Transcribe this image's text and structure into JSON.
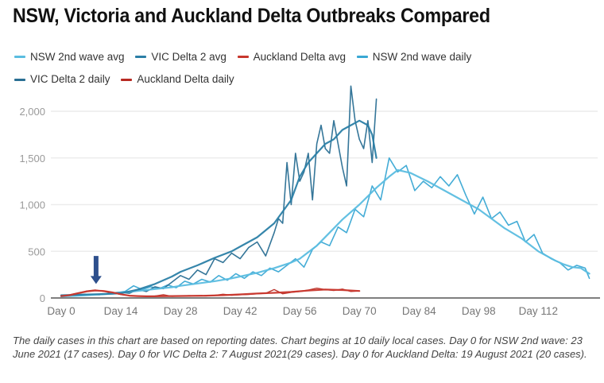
{
  "chart_data": {
    "type": "line",
    "title": "NSW, Victoria and Auckland Delta Outbreaks Compared",
    "xlabel": "",
    "ylabel": "",
    "xlim": [
      0,
      126
    ],
    "ylim": [
      0,
      2200
    ],
    "grid": true,
    "legend_position": "top",
    "x_ticks": [
      {
        "value": 0,
        "label": "Day 0"
      },
      {
        "value": 14,
        "label": "Day 14"
      },
      {
        "value": 28,
        "label": "Day 28"
      },
      {
        "value": 42,
        "label": "Day 42"
      },
      {
        "value": 56,
        "label": "Day 56"
      },
      {
        "value": 70,
        "label": "Day 70"
      },
      {
        "value": 84,
        "label": "Day 84"
      },
      {
        "value": 98,
        "label": "Day 98"
      },
      {
        "value": 112,
        "label": "Day 112"
      }
    ],
    "y_ticks": [
      {
        "value": 0,
        "label": "0"
      },
      {
        "value": 500,
        "label": "500"
      },
      {
        "value": 1000,
        "label": "1,000"
      },
      {
        "value": 1500,
        "label": "1,500"
      },
      {
        "value": 2000,
        "label": "2,000"
      }
    ],
    "series": [
      {
        "name": "NSW 2nd wave avg",
        "color": "#5bbde0",
        "width": 2.2,
        "x": [
          0,
          4,
          8,
          12,
          14,
          18,
          22,
          26,
          28,
          32,
          36,
          40,
          42,
          46,
          50,
          54,
          56,
          60,
          63,
          66,
          70,
          74,
          77,
          79,
          82,
          86,
          90,
          94,
          98,
          101,
          104,
          108,
          112,
          116,
          118,
          120,
          122,
          124
        ],
        "y": [
          17,
          25,
          35,
          45,
          55,
          75,
          95,
          115,
          130,
          155,
          180,
          210,
          230,
          270,
          320,
          380,
          420,
          560,
          700,
          840,
          1000,
          1180,
          1300,
          1370,
          1340,
          1250,
          1150,
          1050,
          950,
          850,
          750,
          640,
          500,
          400,
          360,
          330,
          320,
          260
        ]
      },
      {
        "name": "VIC Delta 2 avg",
        "color": "#2b7fa6",
        "width": 2.2,
        "x": [
          0,
          4,
          8,
          12,
          14,
          18,
          22,
          26,
          28,
          32,
          36,
          40,
          42,
          46,
          50,
          54,
          56,
          58,
          60,
          62,
          64,
          66,
          68,
          70,
          72,
          73,
          74
        ],
        "y": [
          29,
          35,
          40,
          45,
          50,
          90,
          150,
          230,
          280,
          350,
          430,
          500,
          550,
          650,
          800,
          1050,
          1300,
          1450,
          1550,
          1650,
          1700,
          1800,
          1850,
          1900,
          1850,
          1750,
          1500
        ]
      },
      {
        "name": "Auckland Delta avg",
        "color": "#c8372d",
        "width": 2.2,
        "x": [
          0,
          2,
          4,
          6,
          8,
          10,
          12,
          14,
          16,
          18,
          20,
          22,
          26,
          30,
          34,
          38,
          42,
          46,
          50,
          54,
          58,
          62,
          66,
          70
        ],
        "y": [
          20,
          30,
          50,
          70,
          80,
          75,
          60,
          40,
          25,
          20,
          18,
          18,
          20,
          22,
          25,
          30,
          38,
          48,
          55,
          65,
          80,
          90,
          85,
          75
        ]
      },
      {
        "name": "NSW 2nd wave daily",
        "color": "#3aa8d4",
        "width": 1.6,
        "x": [
          0,
          3,
          6,
          9,
          12,
          15,
          17,
          19,
          21,
          23,
          25,
          27,
          29,
          31,
          33,
          35,
          37,
          39,
          41,
          43,
          45,
          47,
          49,
          51,
          53,
          55,
          57,
          59,
          61,
          63,
          65,
          67,
          69,
          71,
          73,
          75,
          77,
          79,
          81,
          83,
          85,
          87,
          89,
          91,
          93,
          95,
          97,
          99,
          101,
          103,
          105,
          107,
          109,
          111,
          113,
          115,
          117,
          119,
          121,
          123,
          124
        ],
        "y": [
          17,
          22,
          30,
          40,
          50,
          70,
          130,
          90,
          120,
          100,
          140,
          110,
          180,
          150,
          200,
          170,
          240,
          190,
          260,
          210,
          280,
          240,
          320,
          280,
          350,
          420,
          330,
          520,
          600,
          560,
          760,
          700,
          950,
          870,
          1200,
          1050,
          1500,
          1350,
          1420,
          1150,
          1250,
          1180,
          1300,
          1200,
          1320,
          1100,
          900,
          1080,
          850,
          920,
          780,
          820,
          600,
          680,
          480,
          420,
          380,
          300,
          350,
          320,
          210
        ]
      },
      {
        "name": "VIC Delta 2 daily",
        "color": "#2a6f93",
        "width": 1.6,
        "x": [
          0,
          3,
          6,
          9,
          12,
          14,
          16,
          18,
          20,
          22,
          24,
          26,
          28,
          30,
          32,
          34,
          36,
          38,
          40,
          42,
          44,
          46,
          48,
          50,
          51,
          52,
          53,
          54,
          55,
          56,
          57,
          58,
          59,
          60,
          61,
          62,
          63,
          64,
          65,
          66,
          67,
          68,
          69,
          70,
          71,
          72,
          73,
          74
        ],
        "y": [
          29,
          30,
          40,
          35,
          55,
          60,
          50,
          90,
          70,
          120,
          100,
          170,
          240,
          200,
          300,
          250,
          420,
          380,
          480,
          420,
          540,
          600,
          450,
          700,
          850,
          800,
          1450,
          1000,
          1550,
          1250,
          1350,
          1550,
          1050,
          1650,
          1850,
          1600,
          1550,
          1900,
          1650,
          1400,
          1200,
          2270,
          1900,
          1700,
          1600,
          1900,
          1450,
          2130
        ]
      },
      {
        "name": "Auckland Delta daily",
        "color": "#b82a22",
        "width": 1.4,
        "x": [
          0,
          2,
          4,
          6,
          8,
          10,
          12,
          14,
          16,
          18,
          20,
          22,
          24,
          26,
          28,
          30,
          32,
          34,
          36,
          38,
          40,
          42,
          44,
          46,
          48,
          50,
          52,
          54,
          56,
          58,
          60,
          62,
          64,
          66,
          68,
          70
        ],
        "y": [
          20,
          35,
          55,
          75,
          85,
          70,
          55,
          38,
          25,
          20,
          18,
          20,
          35,
          18,
          20,
          25,
          22,
          22,
          28,
          40,
          30,
          35,
          38,
          45,
          50,
          90,
          45,
          60,
          70,
          85,
          105,
          90,
          80,
          95,
          70,
          75
        ]
      }
    ],
    "annotations": [
      {
        "type": "arrow",
        "x": 8,
        "y_from": 450,
        "y_to": 150,
        "color": "#2d4f8c"
      }
    ]
  },
  "legend": [
    {
      "label": "NSW 2nd wave avg",
      "color": "#5bbde0"
    },
    {
      "label": "VIC Delta 2 avg",
      "color": "#2b7fa6"
    },
    {
      "label": "Auckland Delta avg",
      "color": "#c8372d"
    },
    {
      "label": "NSW 2nd wave daily",
      "color": "#3aa8d4"
    },
    {
      "label": "VIC Delta 2 daily",
      "color": "#2a6f93"
    },
    {
      "label": "Auckland Delta daily",
      "color": "#b82a22"
    }
  ],
  "note": "The daily cases in this chart are based on reporting dates. Chart begins at 10 daily local cases. Day 0 for NSW 2nd wave: 23 June 2021 (17 cases). Day 0 for VIC Delta 2: 7 August 2021(29 cases). Day 0 for Auckland Delta: 19 August 2021 (20 cases)."
}
